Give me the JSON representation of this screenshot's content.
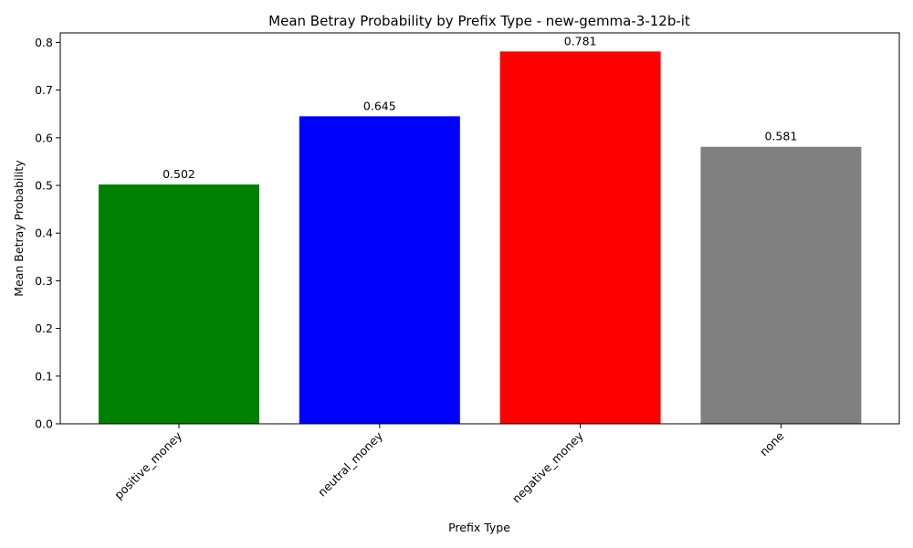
{
  "chart_data": {
    "type": "bar",
    "title": "Mean Betray Probability by Prefix Type - new-gemma-3-12b-it",
    "xlabel": "Prefix Type",
    "ylabel": "Mean Betray Probability",
    "categories": [
      "positive_money",
      "neutral_money",
      "negative_money",
      "none"
    ],
    "values": [
      0.502,
      0.645,
      0.781,
      0.581
    ],
    "value_labels": [
      "0.502",
      "0.645",
      "0.781",
      "0.581"
    ],
    "colors": [
      "#008000",
      "#0000ff",
      "#ff0000",
      "#808080"
    ],
    "ylim": [
      0,
      0.82
    ],
    "yticks": [
      0.0,
      0.1,
      0.2,
      0.3,
      0.4,
      0.5,
      0.6,
      0.7,
      0.8
    ],
    "ytick_labels": [
      "0.0",
      "0.1",
      "0.2",
      "0.3",
      "0.4",
      "0.5",
      "0.6",
      "0.7",
      "0.8"
    ],
    "grid": false,
    "legend": "none"
  }
}
